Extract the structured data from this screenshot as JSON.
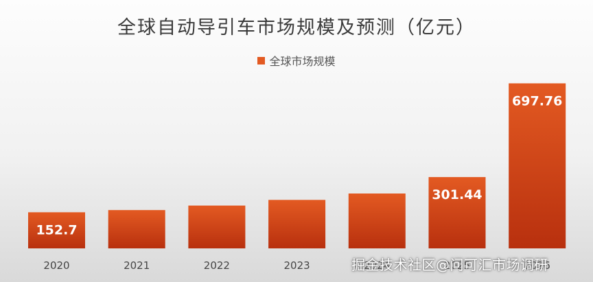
{
  "chart_data": {
    "type": "bar",
    "title": "全球自动导引车市场规模及预测（亿元）",
    "categories": [
      "2020",
      "2021",
      "2022",
      "2023",
      "2024",
      "2025",
      "2026"
    ],
    "series": [
      {
        "name": "全球市场规模",
        "values": [
          152.7,
          162,
          181,
          205,
          232,
          301.44,
          697.76
        ],
        "data_labels": [
          "152.7",
          "",
          "",
          "",
          "",
          "301.44",
          "697.76"
        ]
      }
    ],
    "ylim": [
      0,
      760
    ],
    "grid": false,
    "legend_position": "top",
    "colors": {
      "bar_top": "#e35a22",
      "bar_bottom": "#b8300e",
      "label": "#ffffff"
    }
  },
  "watermark": "掘金技术社区@问可汇市场调研"
}
